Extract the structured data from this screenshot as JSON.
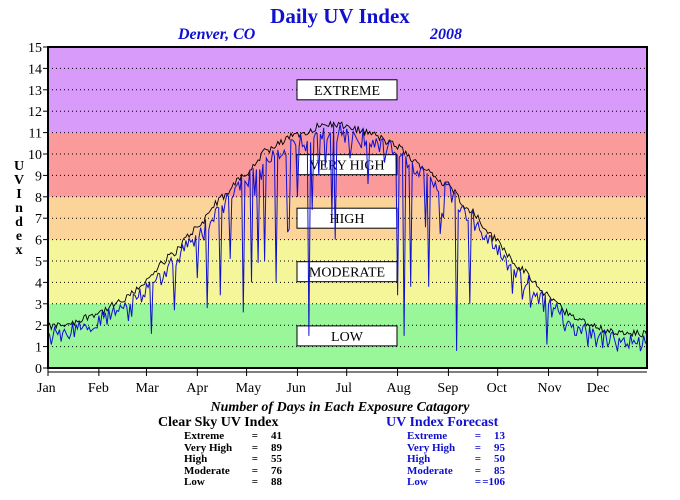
{
  "chart_data": {
    "type": "line",
    "title": "Daily UV Index",
    "subtitle_location": "Denver, CO",
    "subtitle_year": "2008",
    "ylabel": "UV Index",
    "ylim": [
      0,
      15
    ],
    "y_ticks": [
      "0",
      "1",
      "2",
      "3",
      "4",
      "5",
      "6",
      "7",
      "8",
      "9",
      "10",
      "11",
      "12",
      "13",
      "14",
      "15"
    ],
    "x_tick_labels": [
      "Jan",
      "Feb",
      "Mar",
      "Apr",
      "May",
      "Jun",
      "Jul",
      "Aug",
      "Sep",
      "Oct",
      "Nov",
      "Dec"
    ],
    "xlim_days": [
      1,
      366
    ],
    "bands": [
      {
        "label": "LOW",
        "from": 0,
        "to": 3,
        "color": "#99f799"
      },
      {
        "label": "MODERATE",
        "from": 3,
        "to": 6,
        "color": "#f5f59a"
      },
      {
        "label": "HIGH",
        "from": 6,
        "to": 8,
        "color": "#fcd399"
      },
      {
        "label": "VERY HIGH",
        "from": 8,
        "to": 11,
        "color": "#fb9a9a"
      },
      {
        "label": "EXTREME",
        "from": 11,
        "to": 15,
        "color": "#d89bfa"
      }
    ],
    "series": [
      {
        "name": "Clear Sky UV Index",
        "color": "#000000"
      },
      {
        "name": "UV Index Forecast",
        "color": "#1010d0"
      }
    ],
    "clear_sky_anchor_days": [
      1,
      15,
      32,
      46,
      60,
      75,
      91,
      106,
      121,
      135,
      152,
      167,
      172,
      182,
      196,
      213,
      227,
      244,
      258,
      274,
      288,
      305,
      319,
      335,
      350,
      366
    ],
    "clear_sky_anchor_values": [
      1.9,
      2.1,
      2.6,
      3.1,
      4.0,
      5.2,
      6.5,
      7.9,
      9.1,
      10.2,
      10.9,
      11.3,
      11.4,
      11.3,
      11.0,
      10.4,
      9.5,
      8.6,
      7.4,
      6.0,
      4.7,
      3.4,
      2.5,
      1.9,
      1.6,
      1.6
    ],
    "forecast_dip_days": [
      50,
      64,
      78,
      92,
      98,
      106,
      112,
      120,
      125,
      133,
      140,
      148,
      153,
      160,
      166,
      176,
      185,
      196,
      206,
      214,
      218,
      222,
      233,
      250,
      258,
      290,
      305,
      320,
      335,
      350
    ],
    "forecast_dip_values": [
      2.2,
      1.6,
      2.7,
      4.2,
      2.8,
      3.4,
      5.1,
      2.6,
      4.0,
      5.0,
      4.0,
      6.5,
      8.0,
      1.5,
      9.0,
      6.0,
      9.8,
      8.6,
      9.6,
      3.4,
      1.5,
      3.8,
      3.8,
      0.8,
      3.0,
      3.2,
      1.1,
      1.9,
      1.0,
      1.2
    ]
  },
  "summary": {
    "title": "Number of Days in Each Exposure Catagory",
    "clear_sky": {
      "header": "Clear Sky UV Index",
      "rows": [
        {
          "name": "Extreme",
          "eq": "=",
          "value": "41"
        },
        {
          "name": "Very High",
          "eq": "=",
          "value": "89"
        },
        {
          "name": "High",
          "eq": "=",
          "value": "55"
        },
        {
          "name": "Moderate",
          "eq": "=",
          "value": "76"
        },
        {
          "name": "Low",
          "eq": "=",
          "value": "88"
        }
      ]
    },
    "forecast": {
      "header": "UV Index Forecast",
      "rows": [
        {
          "name": "Extreme",
          "eq": "=",
          "value": "13"
        },
        {
          "name": "Very High",
          "eq": "=",
          "value": "95"
        },
        {
          "name": "High",
          "eq": "=",
          "value": "50"
        },
        {
          "name": "Moderate",
          "eq": "=",
          "value": "85"
        },
        {
          "name": "Low",
          "eq": "=",
          "value": "=106"
        }
      ]
    }
  }
}
